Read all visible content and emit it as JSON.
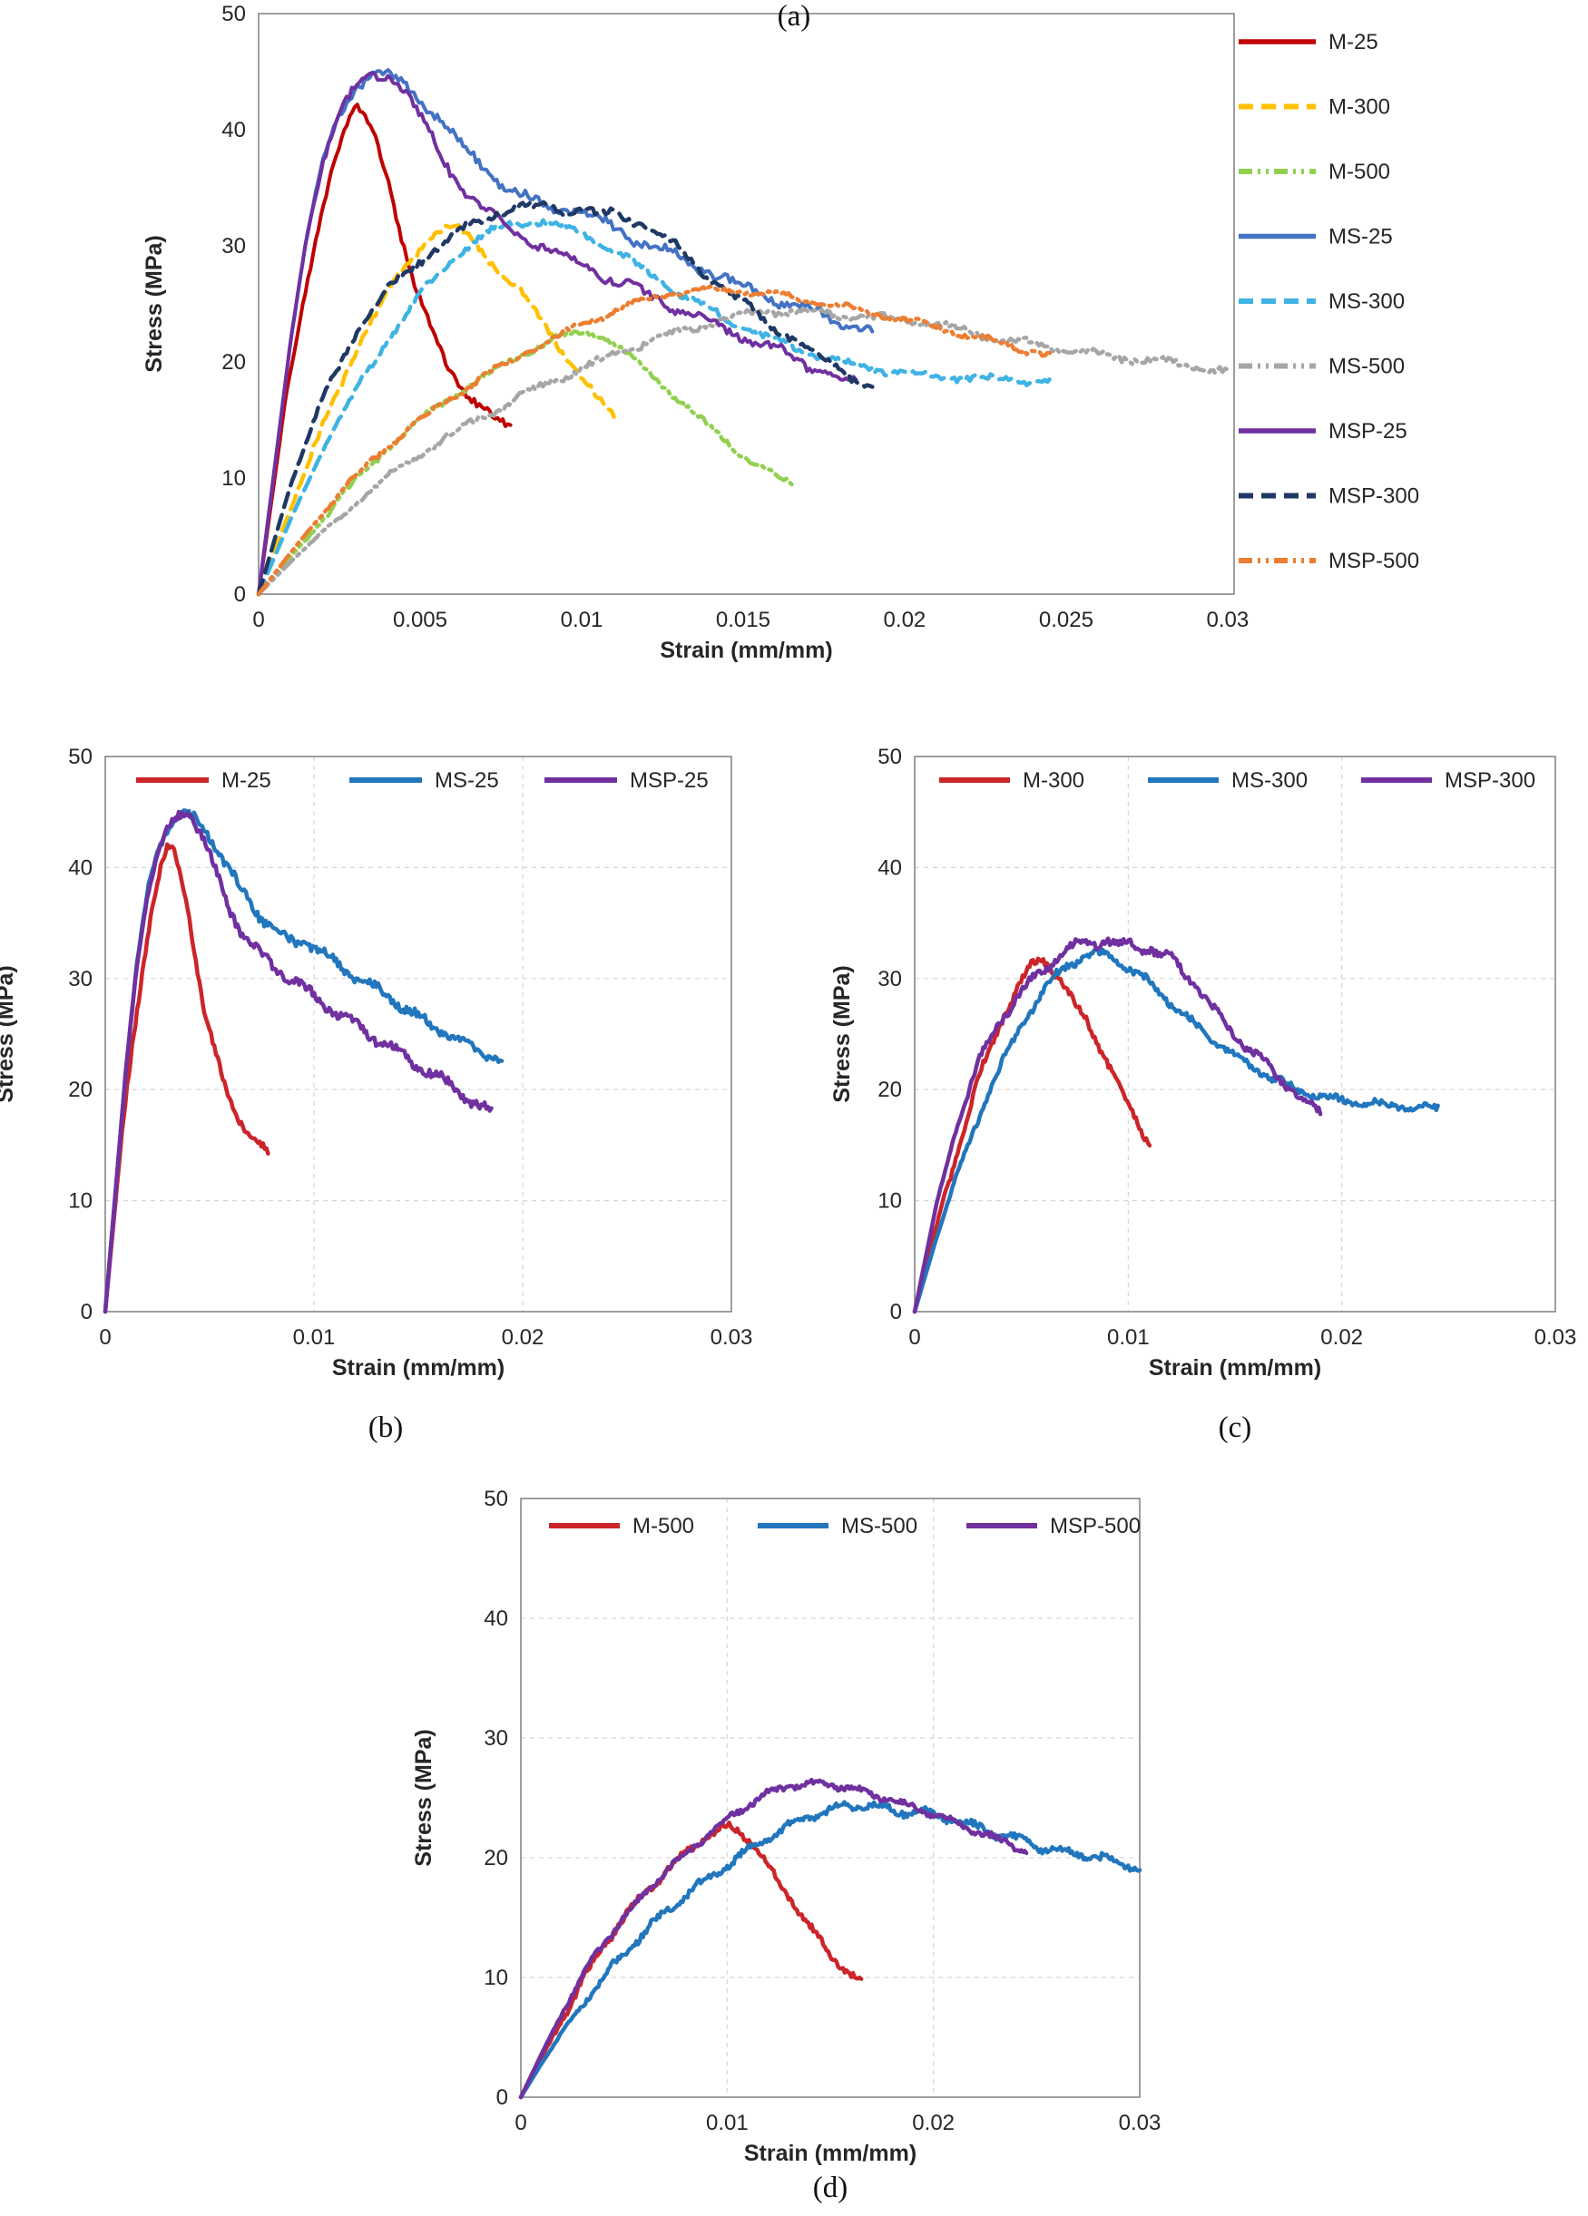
{
  "captions": {
    "a": "(a)",
    "b": "(b)",
    "c": "(c)",
    "d": "(d)"
  },
  "chart_data": {
    "type": "line",
    "xlabel": "Strain (mm/mm)",
    "ylabel": "Stress (MPa)",
    "grid_style": "dashed-light-gray",
    "curves": {
      "M-25": {
        "x": [
          0,
          0.0004,
          0.0008,
          0.0013,
          0.0018,
          0.0022,
          0.0026,
          0.003,
          0.0033,
          0.0036,
          0.004,
          0.0044,
          0.0048,
          0.0053,
          0.0058,
          0.0063,
          0.0068,
          0.0073,
          0.0078
        ],
        "y": [
          0,
          8,
          16,
          24,
          31,
          36,
          39.5,
          41.8,
          41.2,
          39.5,
          36,
          31,
          26.5,
          23,
          20,
          17.8,
          16.2,
          15,
          14.3
        ]
      },
      "M-300": {
        "x": [
          0,
          0.001,
          0.002,
          0.003,
          0.004,
          0.0045,
          0.005,
          0.0055,
          0.006,
          0.0065,
          0.007,
          0.0075,
          0.008,
          0.0085,
          0.009,
          0.0095,
          0.01,
          0.0105,
          0.011
        ],
        "y": [
          0,
          7.5,
          14.5,
          21,
          26,
          28,
          29.8,
          31.2,
          31.6,
          30.8,
          29.4,
          27.6,
          26.4,
          24.6,
          22.6,
          20.6,
          18.6,
          16.8,
          15.2
        ]
      },
      "M-500": {
        "x": [
          0,
          0.001,
          0.002,
          0.003,
          0.004,
          0.005,
          0.006,
          0.007,
          0.008,
          0.009,
          0.0095,
          0.01,
          0.0105,
          0.011,
          0.0115,
          0.012,
          0.013,
          0.014,
          0.015,
          0.016,
          0.0165
        ],
        "y": [
          0,
          3.2,
          6.5,
          9.8,
          12.6,
          15,
          17,
          18.8,
          20.4,
          21.8,
          22.2,
          22.6,
          22.3,
          21.6,
          20.4,
          19.2,
          16.8,
          14.2,
          12,
          10.2,
          9.5
        ]
      },
      "MS-25": {
        "x": [
          0,
          0.0005,
          0.001,
          0.0015,
          0.002,
          0.0025,
          0.003,
          0.0035,
          0.004,
          0.0045,
          0.005,
          0.0055,
          0.006,
          0.0065,
          0.007,
          0.0075,
          0.008,
          0.0085,
          0.009,
          0.0095,
          0.01,
          0.0105,
          0.011,
          0.012,
          0.013,
          0.014,
          0.015,
          0.016,
          0.017,
          0.018,
          0.019
        ],
        "y": [
          0,
          11,
          22,
          31,
          37.5,
          41.5,
          43.8,
          44.8,
          44.6,
          44,
          42.8,
          41.2,
          39.5,
          38,
          36.8,
          35.5,
          34.5,
          33.8,
          33.2,
          33.4,
          32.8,
          32.2,
          31.5,
          30.2,
          29,
          27.8,
          26.5,
          25.4,
          24.4,
          23.4,
          22.6
        ]
      },
      "MS-300": {
        "x": [
          0,
          0.001,
          0.002,
          0.003,
          0.004,
          0.005,
          0.006,
          0.0065,
          0.007,
          0.0075,
          0.008,
          0.0085,
          0.009,
          0.0095,
          0.01,
          0.011,
          0.012,
          0.013,
          0.014,
          0.015,
          0.016,
          0.017,
          0.018,
          0.019,
          0.02,
          0.021,
          0.022,
          0.023,
          0.024,
          0.0245
        ],
        "y": [
          0,
          6.5,
          12.5,
          17.5,
          22,
          25.8,
          28.8,
          30,
          31,
          31.6,
          32,
          32.2,
          32,
          31.6,
          31,
          29.6,
          27.8,
          26,
          24.4,
          23,
          21.8,
          20.8,
          20,
          19.4,
          19,
          18.8,
          18.6,
          18.5,
          18.4,
          18.3
        ]
      },
      "MS-500": {
        "x": [
          0,
          0.001,
          0.002,
          0.003,
          0.004,
          0.005,
          0.006,
          0.007,
          0.008,
          0.009,
          0.01,
          0.011,
          0.012,
          0.013,
          0.014,
          0.015,
          0.016,
          0.017,
          0.018,
          0.019,
          0.02,
          0.021,
          0.022,
          0.023,
          0.024,
          0.025,
          0.026,
          0.027,
          0.028,
          0.029,
          0.03
        ],
        "y": [
          0,
          2.8,
          5.4,
          7.8,
          10,
          12,
          13.8,
          15.4,
          16.9,
          18.2,
          19.4,
          20.6,
          21.7,
          22.6,
          23.4,
          24,
          24.4,
          24.3,
          24,
          23.8,
          23.6,
          23.2,
          22.6,
          22,
          21.5,
          21,
          20.6,
          20.3,
          20,
          19.6,
          19.2
        ]
      },
      "MSP-25": {
        "x": [
          0,
          0.0005,
          0.001,
          0.0015,
          0.002,
          0.0025,
          0.003,
          0.0035,
          0.004,
          0.0045,
          0.005,
          0.0055,
          0.006,
          0.0065,
          0.007,
          0.0075,
          0.008,
          0.009,
          0.01,
          0.011,
          0.012,
          0.013,
          0.014,
          0.015,
          0.016,
          0.017,
          0.018,
          0.0185
        ],
        "y": [
          0,
          11,
          22,
          31,
          37.5,
          41.5,
          43.5,
          44.6,
          45,
          43.5,
          41,
          38.5,
          36.2,
          34.4,
          33,
          32,
          31.2,
          29.8,
          28.4,
          27,
          25.8,
          24.6,
          23.4,
          22.2,
          21,
          19.8,
          18.4,
          18
        ]
      },
      "MSP-300": {
        "x": [
          0,
          0.001,
          0.002,
          0.003,
          0.004,
          0.005,
          0.006,
          0.007,
          0.0075,
          0.008,
          0.0085,
          0.009,
          0.0095,
          0.01,
          0.0105,
          0.011,
          0.0115,
          0.012,
          0.013,
          0.014,
          0.015,
          0.016,
          0.017,
          0.018,
          0.019
        ],
        "y": [
          0,
          9.5,
          17,
          22.5,
          26.2,
          28.8,
          30.8,
          32.4,
          33,
          33.4,
          33.2,
          33.5,
          33,
          33.2,
          32.6,
          32.8,
          32.2,
          31.8,
          29.8,
          27.2,
          25,
          23,
          21.2,
          19.4,
          17.8
        ]
      },
      "MSP-500": {
        "x": [
          0,
          0.001,
          0.002,
          0.003,
          0.004,
          0.005,
          0.006,
          0.007,
          0.008,
          0.009,
          0.01,
          0.011,
          0.012,
          0.013,
          0.014,
          0.015,
          0.016,
          0.017,
          0.018,
          0.019,
          0.02,
          0.021,
          0.022,
          0.023,
          0.024,
          0.0245
        ],
        "y": [
          0,
          3.6,
          7,
          10.2,
          12.8,
          15,
          17,
          18.8,
          20.4,
          21.8,
          23.2,
          24.4,
          25.4,
          26,
          26.2,
          26.1,
          25.8,
          25.3,
          24.8,
          24.2,
          23.6,
          23,
          22.3,
          21.6,
          20.9,
          20.6
        ]
      }
    },
    "panels": [
      {
        "id": "a",
        "xlim": [
          0,
          0.0302
        ],
        "ylim": [
          0,
          50
        ],
        "xticks": {
          "values": [
            0,
            0.005,
            0.01,
            0.015,
            0.02,
            0.025,
            0.03
          ],
          "labels": [
            "0",
            "0.005",
            "0.01",
            "0.015",
            "0.02",
            "0.025",
            "0.03"
          ]
        },
        "yticks": {
          "values": [
            0,
            10,
            20,
            30,
            40,
            50
          ],
          "labels": [
            "0",
            "10",
            "20",
            "30",
            "40",
            "50"
          ]
        },
        "grid": false,
        "legend_position": "right",
        "series": [
          {
            "curve": "M-25",
            "color": "#c00000",
            "dash": "solid",
            "width": 4,
            "noise": 0.35
          },
          {
            "curve": "M-300",
            "color": "#ffc000",
            "dash": "dashed",
            "width": 4.5,
            "noise": 0.3
          },
          {
            "curve": "M-500",
            "color": "#92d050",
            "dash": "dashdot",
            "width": 4.5,
            "noise": 0.25
          },
          {
            "curve": "MS-25",
            "color": "#4472c4",
            "dash": "solid",
            "width": 4,
            "noise": 0.45
          },
          {
            "curve": "MS-300",
            "color": "#3fb3e3",
            "dash": "dashed",
            "width": 4.5,
            "noise": 0.3
          },
          {
            "curve": "MS-500",
            "color": "#a6a6a6",
            "dash": "dashdot",
            "width": 4.5,
            "noise": 0.3
          },
          {
            "curve": "MSP-25",
            "color": "#7030a0",
            "dash": "solid",
            "width": 4,
            "noise": 0.45
          },
          {
            "curve": "MSP-300",
            "color": "#1f3864",
            "dash": "dashed",
            "width": 4.5,
            "noise": 0.35
          },
          {
            "curve": "MSP-500",
            "color": "#ed7d31",
            "dash": "dashdot",
            "width": 4.5,
            "noise": 0.25
          }
        ]
      },
      {
        "id": "b",
        "xlim": [
          0,
          0.03
        ],
        "ylim": [
          0,
          50
        ],
        "xticks": {
          "values": [
            0,
            0.01,
            0.02,
            0.03
          ],
          "labels": [
            "0",
            "0.01",
            "0.02",
            "0.03"
          ]
        },
        "yticks": {
          "values": [
            0,
            10,
            20,
            30,
            40,
            50
          ],
          "labels": [
            "0",
            "10",
            "20",
            "30",
            "40",
            "50"
          ]
        },
        "grid": true,
        "legend_position": "top",
        "series": [
          {
            "curve": "M-25",
            "color": "#cc2529",
            "dash": "solid",
            "width": 4.5,
            "noise": 0.35
          },
          {
            "curve": "MS-25",
            "color": "#2176bd",
            "dash": "solid",
            "width": 4.5,
            "noise": 0.45
          },
          {
            "curve": "MSP-25",
            "color": "#7030a0",
            "dash": "solid",
            "width": 4.5,
            "noise": 0.45
          }
        ]
      },
      {
        "id": "c",
        "xlim": [
          0,
          0.03
        ],
        "ylim": [
          0,
          50
        ],
        "xticks": {
          "values": [
            0,
            0.01,
            0.02,
            0.03
          ],
          "labels": [
            "0",
            "0.01",
            "0.02",
            "0.03"
          ]
        },
        "yticks": {
          "values": [
            0,
            10,
            20,
            30,
            40,
            50
          ],
          "labels": [
            "0",
            "10",
            "20",
            "30",
            "40",
            "50"
          ]
        },
        "grid": true,
        "legend_position": "top",
        "series": [
          {
            "curve": "M-300",
            "color": "#cc2529",
            "dash": "solid",
            "width": 4.5,
            "noise": 0.35
          },
          {
            "curve": "MS-300",
            "color": "#2176bd",
            "dash": "solid",
            "width": 4.5,
            "noise": 0.35
          },
          {
            "curve": "MSP-300",
            "color": "#7030a0",
            "dash": "solid",
            "width": 4.5,
            "noise": 0.4
          }
        ]
      },
      {
        "id": "d",
        "xlim": [
          0,
          0.03
        ],
        "ylim": [
          0,
          50
        ],
        "xticks": {
          "values": [
            0,
            0.01,
            0.02,
            0.03
          ],
          "labels": [
            "0",
            "0.01",
            "0.02",
            "0.03"
          ]
        },
        "yticks": {
          "values": [
            0,
            10,
            20,
            30,
            40,
            50
          ],
          "labels": [
            "0",
            "10",
            "20",
            "30",
            "40",
            "50"
          ]
        },
        "grid": true,
        "legend_position": "top",
        "series": [
          {
            "curve": "M-500",
            "color": "#cc2529",
            "dash": "solid",
            "width": 4.5,
            "noise": 0.3
          },
          {
            "curve": "MS-500",
            "color": "#2176bd",
            "dash": "solid",
            "width": 4.5,
            "noise": 0.35
          },
          {
            "curve": "MSP-500",
            "color": "#7030a0",
            "dash": "solid",
            "width": 4.5,
            "noise": 0.25
          }
        ]
      }
    ]
  }
}
